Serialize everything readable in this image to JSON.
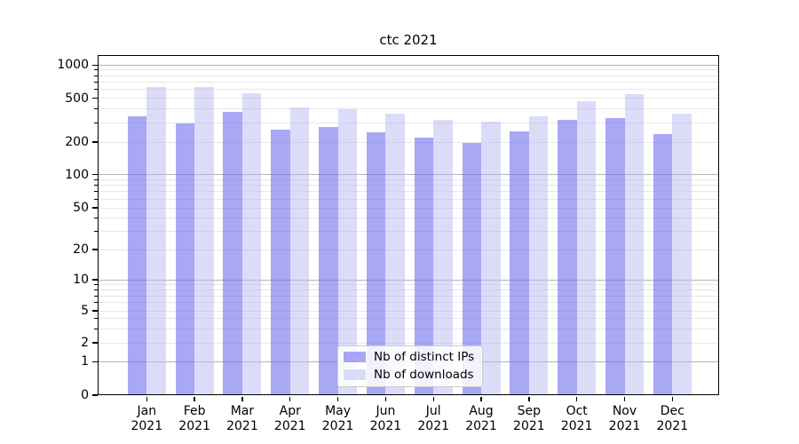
{
  "title": "ctc 2021",
  "chart_data": {
    "type": "bar",
    "title": "ctc 2021",
    "categories": [
      {
        "month": "Jan",
        "year": "2021"
      },
      {
        "month": "Feb",
        "year": "2021"
      },
      {
        "month": "Mar",
        "year": "2021"
      },
      {
        "month": "Apr",
        "year": "2021"
      },
      {
        "month": "May",
        "year": "2021"
      },
      {
        "month": "Jun",
        "year": "2021"
      },
      {
        "month": "Jul",
        "year": "2021"
      },
      {
        "month": "Aug",
        "year": "2021"
      },
      {
        "month": "Sep",
        "year": "2021"
      },
      {
        "month": "Oct",
        "year": "2021"
      },
      {
        "month": "Nov",
        "year": "2021"
      },
      {
        "month": "Dec",
        "year": "2021"
      }
    ],
    "series": [
      {
        "name": "Nb of distinct IPs",
        "color": "rgba(110,110,238,0.6)",
        "values": [
          340,
          295,
          375,
          260,
          275,
          245,
          220,
          195,
          250,
          320,
          330,
          235
        ]
      },
      {
        "name": "Nb of downloads",
        "color": "rgba(185,185,243,0.5)",
        "values": [
          630,
          630,
          550,
          415,
          395,
          360,
          320,
          305,
          345,
          465,
          545,
          365
        ]
      }
    ],
    "xlabel": "",
    "ylabel": "",
    "yscale": "symlog",
    "ylim": [
      0,
      1240
    ],
    "y_tick_labels": [
      0,
      1,
      2,
      5,
      10,
      20,
      50,
      100,
      200,
      500,
      1000
    ],
    "y_minor_unlabeled_ticks": [
      3,
      4,
      6,
      7,
      8,
      9,
      30,
      40,
      60,
      70,
      80,
      90,
      300,
      400,
      600,
      700,
      800,
      900
    ],
    "grid": true,
    "legend_position": "lower center",
    "colors": {
      "bar_distinct_ips": "rgba(110,110,238,0.6)",
      "bar_downloads": "rgba(185,185,243,0.5)",
      "major_grid": "#b3b3b3",
      "minor_grid": "#e7e7e7",
      "spine": "#000000",
      "text": "#000000",
      "legend_border": "#cccccc"
    }
  }
}
